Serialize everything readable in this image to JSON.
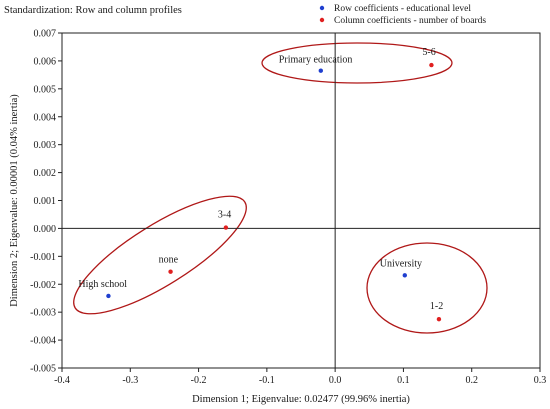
{
  "chart_data": {
    "type": "scatter",
    "header": "Standardization: Row and column profiles",
    "xlabel": "Dimension 1; Eigenvalue: 0.02477 (99.96% inertia)",
    "ylabel": "Dimension 2; Eigenvalue: 0.00001 (0.04% inertia)",
    "xlim": [
      -0.4,
      0.3
    ],
    "ylim": [
      -0.005,
      0.007
    ],
    "xticks": [
      "-0.4",
      "-0.3",
      "-0.2",
      "-0.1",
      "0.0",
      "0.1",
      "0.2",
      "0.3"
    ],
    "xtick_values": [
      -0.4,
      -0.3,
      -0.2,
      -0.1,
      0.0,
      0.1,
      0.2,
      0.3
    ],
    "yticks": [
      "-0.005",
      "-0.004",
      "-0.003",
      "-0.002",
      "-0.001",
      "0.000",
      "0.001",
      "0.002",
      "0.003",
      "0.004",
      "0.005",
      "0.006",
      "0.007"
    ],
    "ytick_values": [
      -0.005,
      -0.004,
      -0.003,
      -0.002,
      -0.001,
      0.0,
      0.001,
      0.002,
      0.003,
      0.004,
      0.005,
      0.006,
      0.007
    ],
    "series": [
      {
        "name": "Row coefficients - educational level",
        "color": "#1f3fcf",
        "points": [
          {
            "label": "Primary education",
            "x": -0.021,
            "y": 0.00565
          },
          {
            "label": "High school",
            "x": -0.332,
            "y": -0.00242
          },
          {
            "label": "University",
            "x": 0.102,
            "y": -0.00168
          }
        ]
      },
      {
        "name": "Column coefficients - number of boards",
        "color": "#e02020",
        "points": [
          {
            "label": "5-6",
            "x": 0.141,
            "y": 0.00585
          },
          {
            "label": "3-4",
            "x": -0.16,
            "y": 3e-05
          },
          {
            "label": "none",
            "x": -0.241,
            "y": -0.00155
          },
          {
            "label": "1-2",
            "x": 0.152,
            "y": -0.00325
          }
        ]
      }
    ],
    "ellipse_color": "#b01818",
    "legend_position": "top-right",
    "grid": false
  }
}
